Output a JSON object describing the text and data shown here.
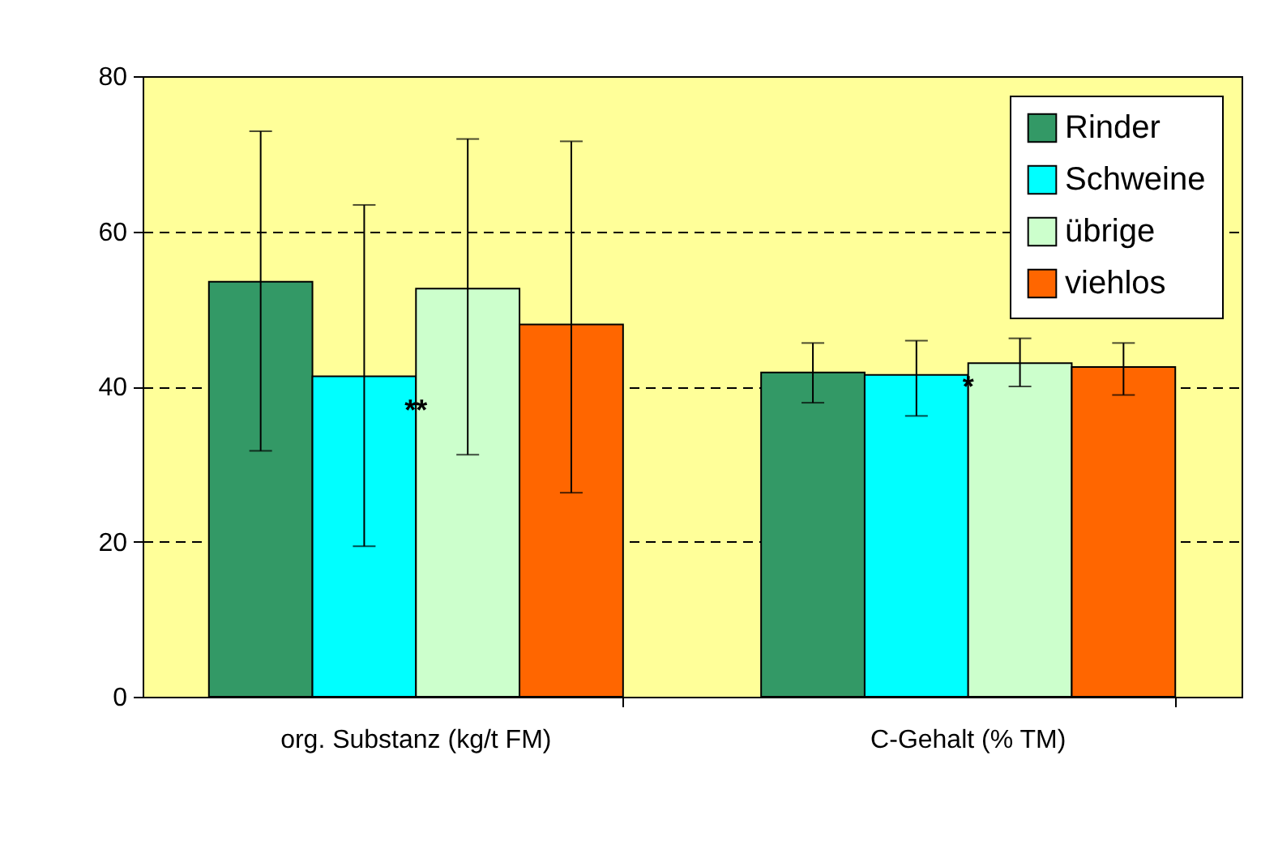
{
  "chart_data": {
    "type": "bar",
    "categories": [
      "org. Substanz (kg/t FM)",
      "C-Gehalt (% TM)"
    ],
    "series": [
      {
        "name": "Rinder",
        "color": "#339966",
        "values": [
          53.5,
          41.8
        ],
        "errors": [
          [
            31.7,
            72.9
          ],
          [
            37.9,
            45.6
          ]
        ]
      },
      {
        "name": "Schweine",
        "color": "#00ffff",
        "values": [
          41.3,
          41.5
        ],
        "errors": [
          [
            19.4,
            63.4
          ],
          [
            36.2,
            45.9
          ]
        ]
      },
      {
        "name": "übrige",
        "color": "#ccffcc",
        "values": [
          52.6,
          43.0
        ],
        "errors": [
          [
            31.2,
            71.9
          ],
          [
            40.0,
            46.2
          ]
        ]
      },
      {
        "name": "viehlos",
        "color": "#ff6600",
        "values": [
          48.0,
          42.5
        ],
        "errors": [
          [
            26.3,
            71.6
          ],
          [
            38.9,
            45.6
          ]
        ]
      }
    ],
    "annotations": [
      {
        "text": "**",
        "x": "org. Substanz (kg/t FM)",
        "y": 38
      },
      {
        "text": "*",
        "x": "C-Gehalt (% TM)",
        "y": 41
      }
    ],
    "ylim": [
      0,
      80
    ],
    "yticks": [
      0,
      20,
      40,
      60,
      80
    ],
    "grid": "y",
    "legend": "top right"
  }
}
